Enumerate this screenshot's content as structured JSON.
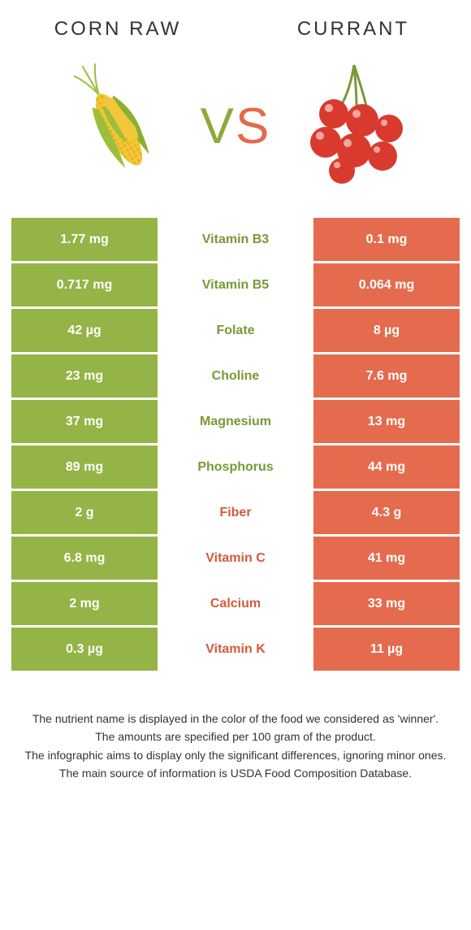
{
  "colors": {
    "left": "#94b447",
    "right": "#e56b4e",
    "left_text": "#7a9935",
    "right_text": "#d45a3f"
  },
  "header": {
    "left_title": "CORN RAW",
    "right_title": "CURRANT"
  },
  "vs": {
    "v": "V",
    "s": "S"
  },
  "rows": [
    {
      "left": "1.77 mg",
      "label": "Vitamin B3",
      "right": "0.1 mg",
      "winner": "left"
    },
    {
      "left": "0.717 mg",
      "label": "Vitamin B5",
      "right": "0.064 mg",
      "winner": "left"
    },
    {
      "left": "42 µg",
      "label": "Folate",
      "right": "8 µg",
      "winner": "left"
    },
    {
      "left": "23 mg",
      "label": "Choline",
      "right": "7.6 mg",
      "winner": "left"
    },
    {
      "left": "37 mg",
      "label": "Magnesium",
      "right": "13 mg",
      "winner": "left"
    },
    {
      "left": "89 mg",
      "label": "Phosphorus",
      "right": "44 mg",
      "winner": "left"
    },
    {
      "left": "2 g",
      "label": "Fiber",
      "right": "4.3 g",
      "winner": "right"
    },
    {
      "left": "6.8 mg",
      "label": "Vitamin C",
      "right": "41 mg",
      "winner": "right"
    },
    {
      "left": "2 mg",
      "label": "Calcium",
      "right": "33 mg",
      "winner": "right"
    },
    {
      "left": "0.3 µg",
      "label": "Vitamin K",
      "right": "11 µg",
      "winner": "right"
    }
  ],
  "footer": {
    "line1": "The nutrient name is displayed in the color of the food we considered as 'winner'.",
    "line2": "The amounts are specified per 100 gram of the product.",
    "line3": "The infographic aims to display only the significant differences, ignoring minor ones.",
    "line4": "The main source of information is USDA Food Composition Database."
  }
}
